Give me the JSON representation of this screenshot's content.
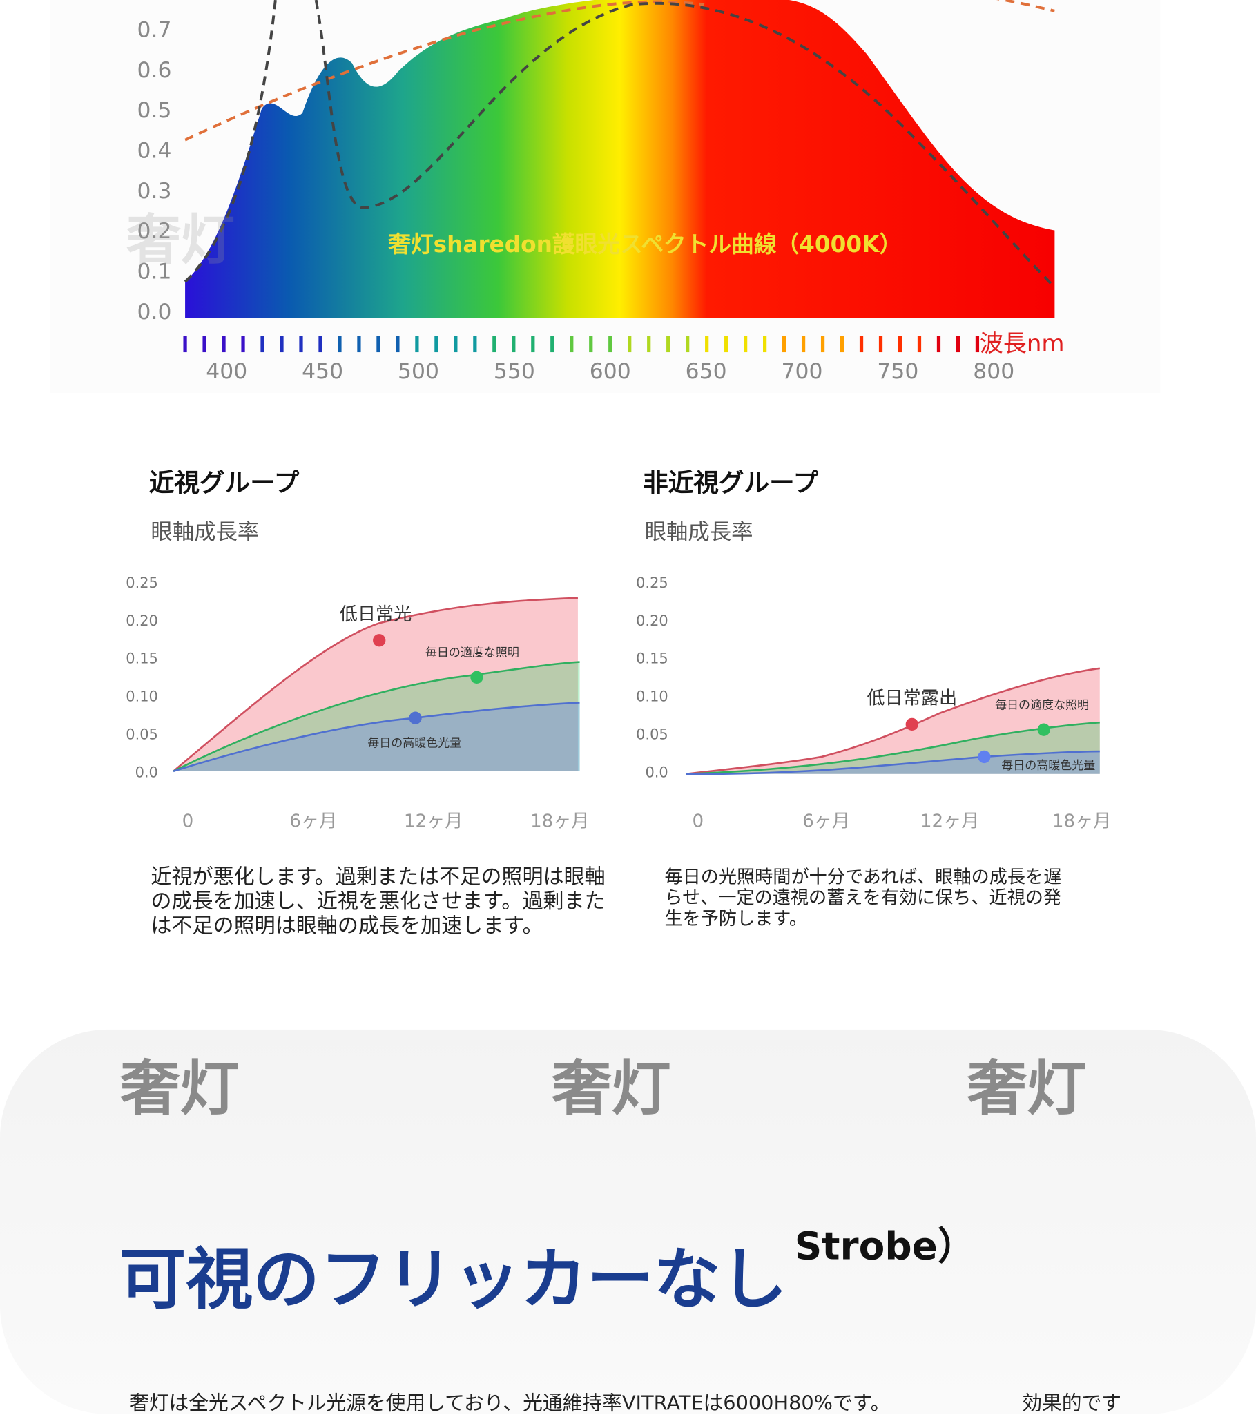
{
  "spectrum": {
    "title": "奢灯sharedon護眼光スペクトル曲線（4000K）",
    "yticks": [
      "0.7",
      "0.6",
      "0.5",
      "0.4",
      "0.3",
      "0.2",
      "0.1",
      "0.0"
    ],
    "xticks": [
      "400",
      "450",
      "500",
      "550",
      "600",
      "650",
      "700",
      "750",
      "800"
    ],
    "unit": "波長nm",
    "watermark": "奢灯"
  },
  "left_panel": {
    "title": "近視グループ",
    "subtitle": "眼軸成長率",
    "yticks": [
      "0.25",
      "0.20",
      "0.15",
      "0.10",
      "0.05",
      "0.0"
    ],
    "xticks": [
      "0",
      "6ヶ月",
      "12ヶ月",
      "18ヶ月"
    ],
    "labels": [
      "低日常光",
      "毎日の適度な照明",
      "毎日の高暖色光量"
    ],
    "description": [
      "近視が悪化します。過剰または不足の照明は眼軸",
      "の成長を加速し、近視を悪化させます。過剰また",
      "は不足の照明は眼軸の成長を加速します。"
    ]
  },
  "right_panel": {
    "title": "非近視グループ",
    "subtitle": "眼軸成長率",
    "yticks": [
      "0.25",
      "0.20",
      "0.15",
      "0.10",
      "0.05",
      "0.0"
    ],
    "xticks": [
      "0",
      "6ヶ月",
      "12ヶ月",
      "18ヶ月"
    ],
    "labels": [
      "低日常露出",
      "毎日の適度な照明",
      "毎日の高暖色光量"
    ],
    "description": [
      "毎日の光照時間が十分であれば、眼軸の成長を遅",
      "らせ、一定の遠視の蓄えを有効に保ち、近視の発",
      "生を予防します。"
    ]
  },
  "flicker": {
    "watermarks": [
      "奢灯",
      "奢灯",
      "奢灯"
    ],
    "strobe": "Strobe）",
    "heading": "可視のフリッカーなし",
    "body": "奢灯は全光スペクトル光源を使用しており、光通維持率VITRATEは6000H80%です。",
    "side": "効果的です"
  }
}
